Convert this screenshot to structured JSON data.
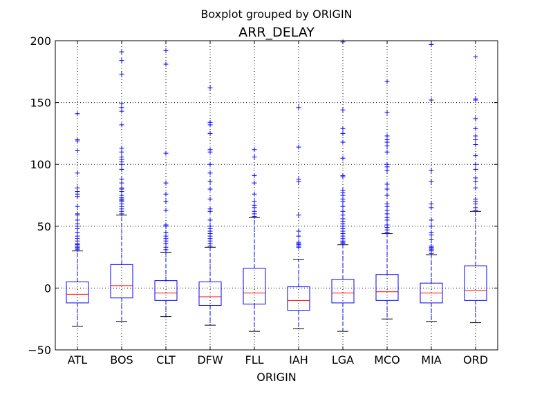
{
  "chart_data": {
    "type": "box",
    "suptitle": "Boxplot grouped by ORIGIN",
    "title": "ARR_DELAY",
    "xlabel": "ORIGIN",
    "ylabel": "",
    "ylim": [
      -50,
      200
    ],
    "yticks": [
      -50,
      0,
      50,
      100,
      150,
      200
    ],
    "grid": true,
    "colors": {
      "box": "#0000ff",
      "median": "#ff0000",
      "cap": "#000000",
      "flier": "#0000ff",
      "grid": "#000000"
    },
    "categories": [
      "ATL",
      "BOS",
      "CLT",
      "DFW",
      "FLL",
      "IAH",
      "LGA",
      "MCO",
      "MIA",
      "ORD"
    ],
    "boxes": [
      {
        "name": "ATL",
        "whislo": -31,
        "q1": -12,
        "med": -5,
        "q3": 5,
        "whishi": 30,
        "fliers": [
          31,
          32,
          33,
          34,
          35,
          36,
          38,
          40,
          42,
          45,
          48,
          50,
          52,
          55,
          59,
          60,
          66,
          74,
          76,
          78,
          81,
          93,
          111,
          119,
          120,
          141
        ]
      },
      {
        "name": "BOS",
        "whislo": -27,
        "q1": -8,
        "med": 2,
        "q3": 19,
        "whishi": 59,
        "fliers": [
          60,
          62,
          64,
          66,
          68,
          70,
          71,
          72,
          73,
          75,
          78,
          80,
          81,
          85,
          88,
          96,
          100,
          102,
          104,
          106,
          110,
          113,
          132,
          143,
          146,
          149,
          173,
          184,
          191
        ]
      },
      {
        "name": "CLT",
        "whislo": -23,
        "q1": -10,
        "med": -4,
        "q3": 6,
        "whishi": 29,
        "fliers": [
          31,
          33,
          36,
          38,
          40,
          42,
          45,
          50,
          51,
          63,
          70,
          76,
          85,
          109,
          181,
          192
        ]
      },
      {
        "name": "DFW",
        "whislo": -30,
        "q1": -14,
        "med": -7,
        "q3": 5,
        "whishi": 33,
        "fliers": [
          34,
          36,
          38,
          40,
          42,
          44,
          46,
          48,
          50,
          55,
          62,
          64,
          72,
          80,
          86,
          93,
          100,
          110,
          112,
          125,
          132,
          134,
          162
        ]
      },
      {
        "name": "FLL",
        "whislo": -35,
        "q1": -13,
        "med": -4,
        "q3": 16,
        "whishi": 57,
        "fliers": [
          58,
          60,
          62,
          65,
          67,
          70,
          76,
          85,
          91,
          106,
          112
        ]
      },
      {
        "name": "IAH",
        "whislo": -33,
        "q1": -18,
        "med": -10,
        "q3": 1,
        "whishi": 23,
        "fliers": [
          33,
          34,
          35,
          36,
          37,
          42,
          46,
          59,
          86,
          88,
          114,
          146
        ]
      },
      {
        "name": "LGA",
        "whislo": -35,
        "q1": -12,
        "med": -4,
        "q3": 7,
        "whishi": 35,
        "fliers": [
          36,
          37,
          38,
          40,
          42,
          44,
          46,
          48,
          50,
          52,
          54,
          56,
          59,
          62,
          66,
          70,
          72,
          75,
          77,
          79,
          90,
          91,
          105,
          118,
          125,
          129,
          144,
          199
        ]
      },
      {
        "name": "MCO",
        "whislo": -25,
        "q1": -10,
        "med": -3,
        "q3": 11,
        "whishi": 44,
        "fliers": [
          45,
          47,
          49,
          51,
          55,
          57,
          60,
          63,
          66,
          68,
          75,
          80,
          84,
          95,
          98,
          100,
          110,
          115,
          118,
          120,
          123,
          142,
          167
        ]
      },
      {
        "name": "MIA",
        "whislo": -27,
        "q1": -12,
        "med": -4,
        "q3": 4,
        "whishi": 27,
        "fliers": [
          28,
          30,
          31,
          32,
          33,
          34,
          39,
          43,
          45,
          50,
          55,
          65,
          68,
          86,
          95,
          152,
          197
        ]
      },
      {
        "name": "ORD",
        "whislo": -28,
        "q1": -10,
        "med": -2,
        "q3": 18,
        "whishi": 62,
        "fliers": [
          63,
          65,
          68,
          70,
          72,
          81,
          86,
          89,
          96,
          100,
          107,
          116,
          120,
          123,
          129,
          137,
          152,
          153,
          187
        ]
      }
    ]
  }
}
